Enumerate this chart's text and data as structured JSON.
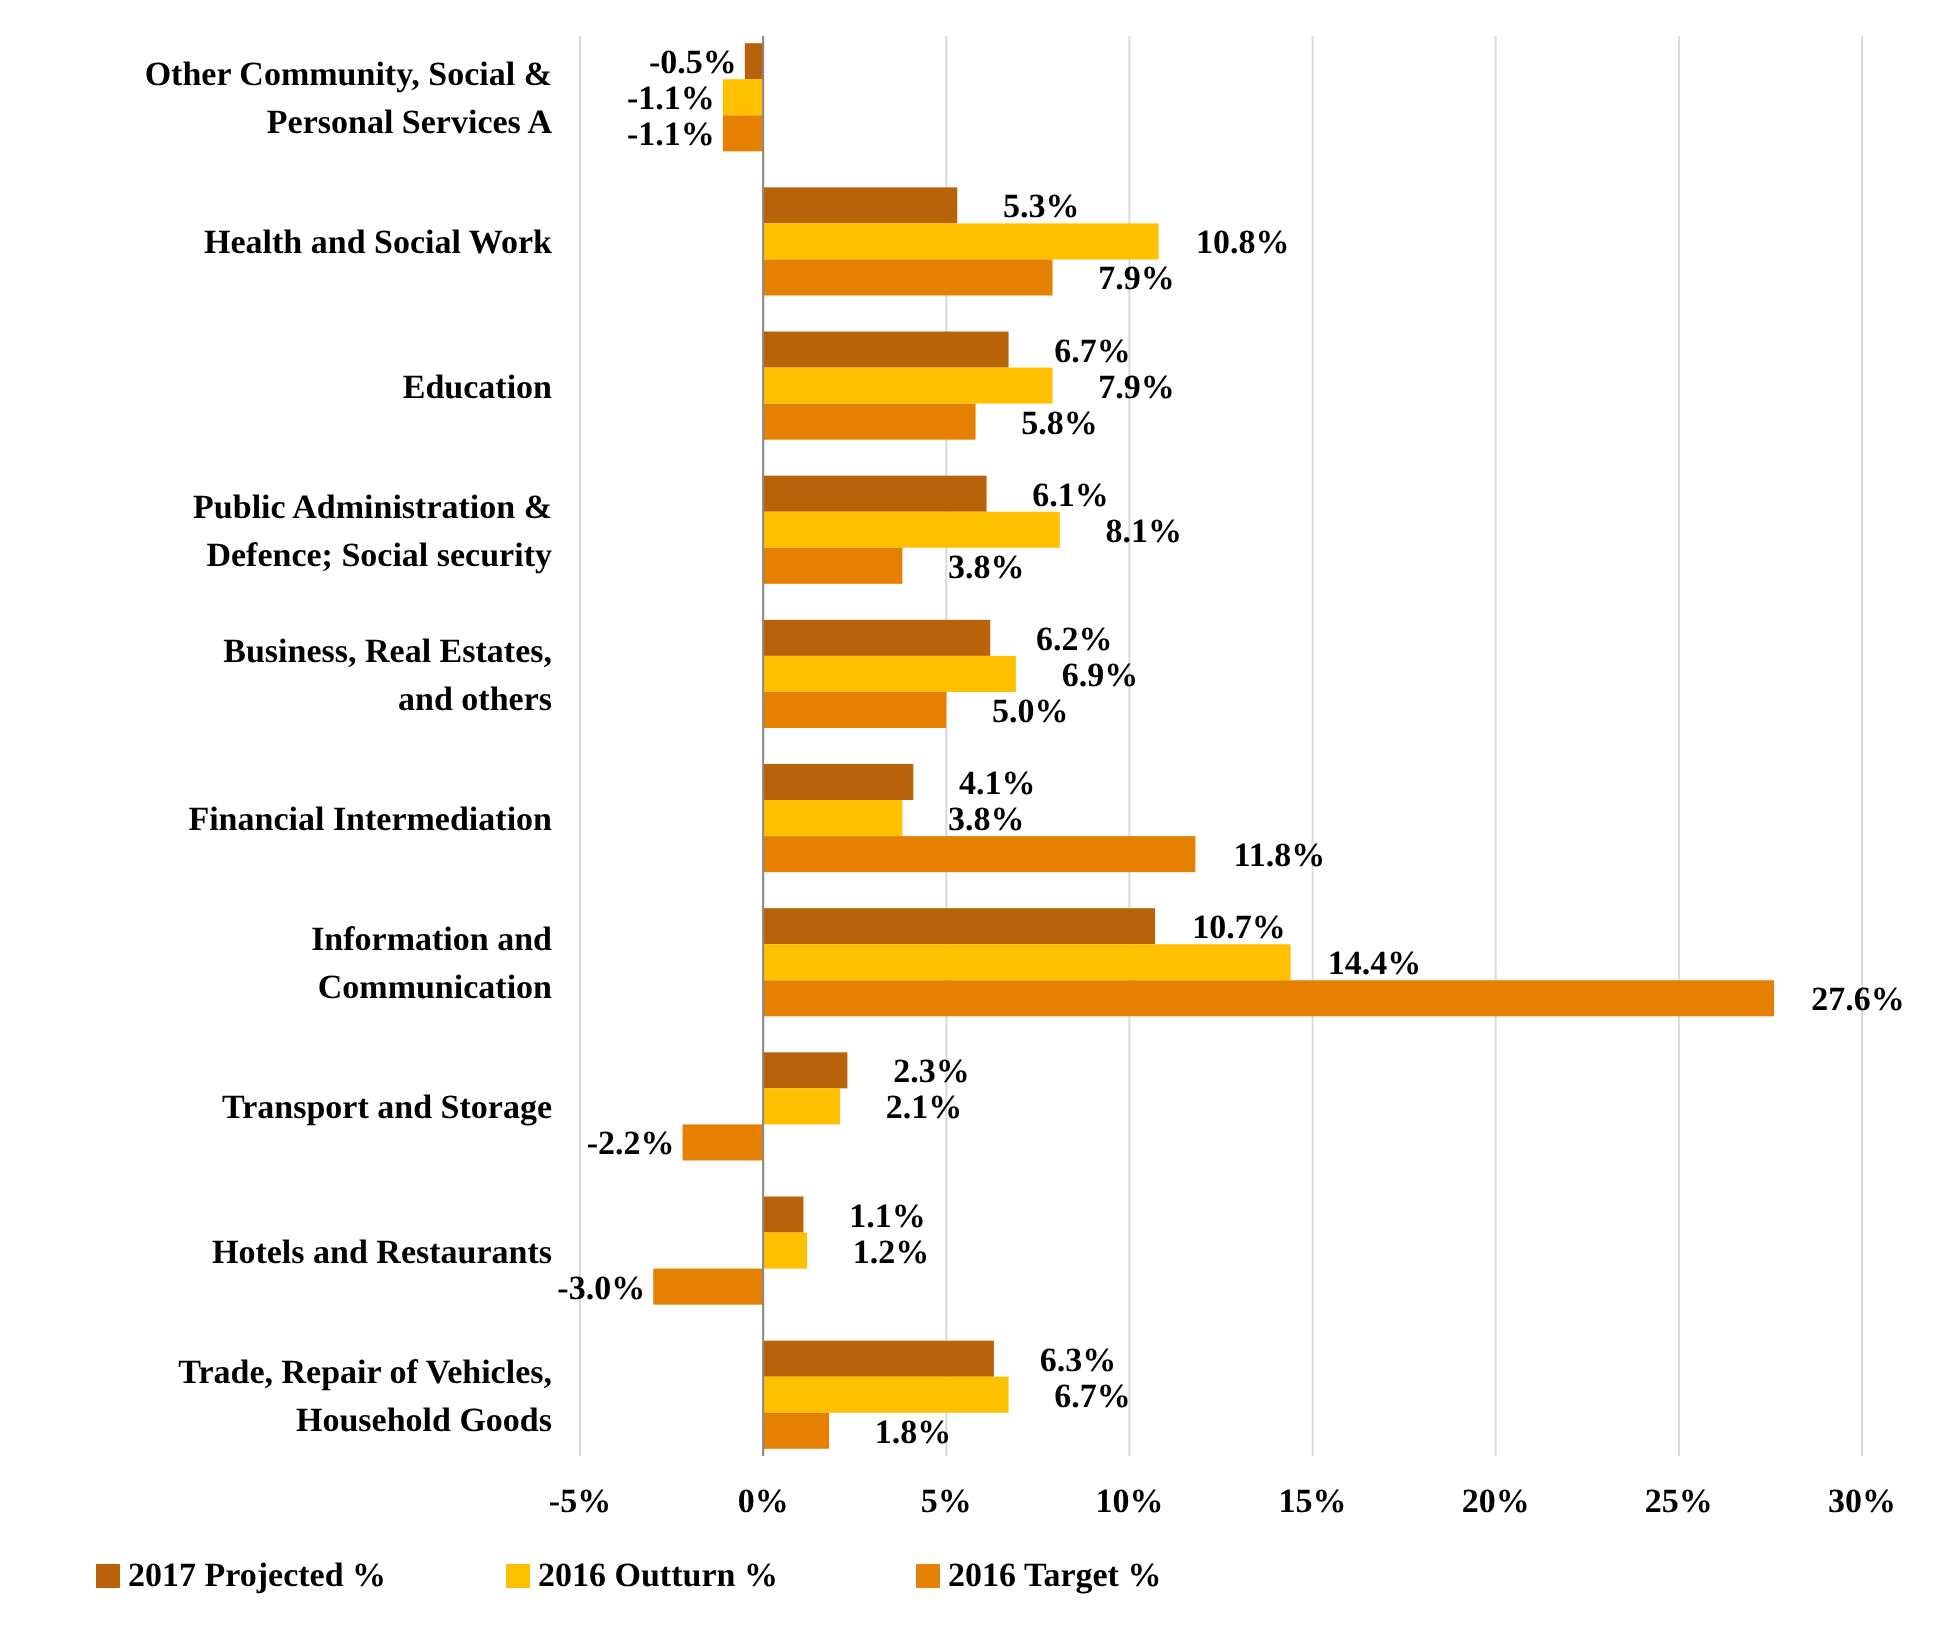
{
  "chart_data": {
    "type": "bar",
    "orientation": "horizontal",
    "categories": [
      "Other Community, Social & Personal Services A",
      "Health and Social Work",
      "Education",
      "Public Administration & Defence; Social security",
      "Business, Real Estates, and others",
      "Financial Intermediation",
      "Information and Communication",
      "Transport and Storage",
      "Hotels and Restaurants",
      "Trade, Repair of Vehicles, Household Goods"
    ],
    "series": [
      {
        "name": "2017 Projected %",
        "color": "#b8620a",
        "values": [
          -0.5,
          5.3,
          6.7,
          6.1,
          6.2,
          4.1,
          10.7,
          2.3,
          1.1,
          6.3
        ],
        "value_labels": [
          "-0.5%",
          "5.3%",
          "6.7%",
          "6.1%",
          "6.2%",
          "4.1%",
          "10.7%",
          "2.3%",
          "1.1%",
          "6.3%"
        ]
      },
      {
        "name": "2016 Outturn %",
        "color": "#ffc000",
        "values": [
          -1.1,
          10.8,
          7.9,
          8.1,
          6.9,
          3.8,
          14.4,
          2.1,
          1.2,
          6.7
        ],
        "value_labels": [
          "-1.1%",
          "10.8%",
          "7.9%",
          "8.1%",
          "6.9%",
          "3.8%",
          "14.4%",
          "2.1%",
          "1.2%",
          "6.7%"
        ]
      },
      {
        "name": "2016 Target %",
        "color": "#e58000",
        "values": [
          -1.1,
          7.9,
          5.8,
          3.8,
          5.0,
          11.8,
          27.6,
          -2.2,
          -3.0,
          1.8
        ],
        "value_labels": [
          "-1.1%",
          "7.9%",
          "5.8%",
          "3.8%",
          "5.0%",
          "11.8%",
          "27.6%",
          "-2.2%",
          "-3.0%",
          "1.8%"
        ]
      }
    ],
    "xlim": [
      -5,
      30
    ],
    "xticks": [
      {
        "value": -5,
        "label": "-5%"
      },
      {
        "value": 0,
        "label": "0%"
      },
      {
        "value": 5,
        "label": "5%"
      },
      {
        "value": 10,
        "label": "10%"
      },
      {
        "value": 15,
        "label": "15%"
      },
      {
        "value": 20,
        "label": "20%"
      },
      {
        "value": 25,
        "label": "25%"
      },
      {
        "value": 30,
        "label": "30%"
      }
    ],
    "grid": "x",
    "legend": "bottom"
  }
}
